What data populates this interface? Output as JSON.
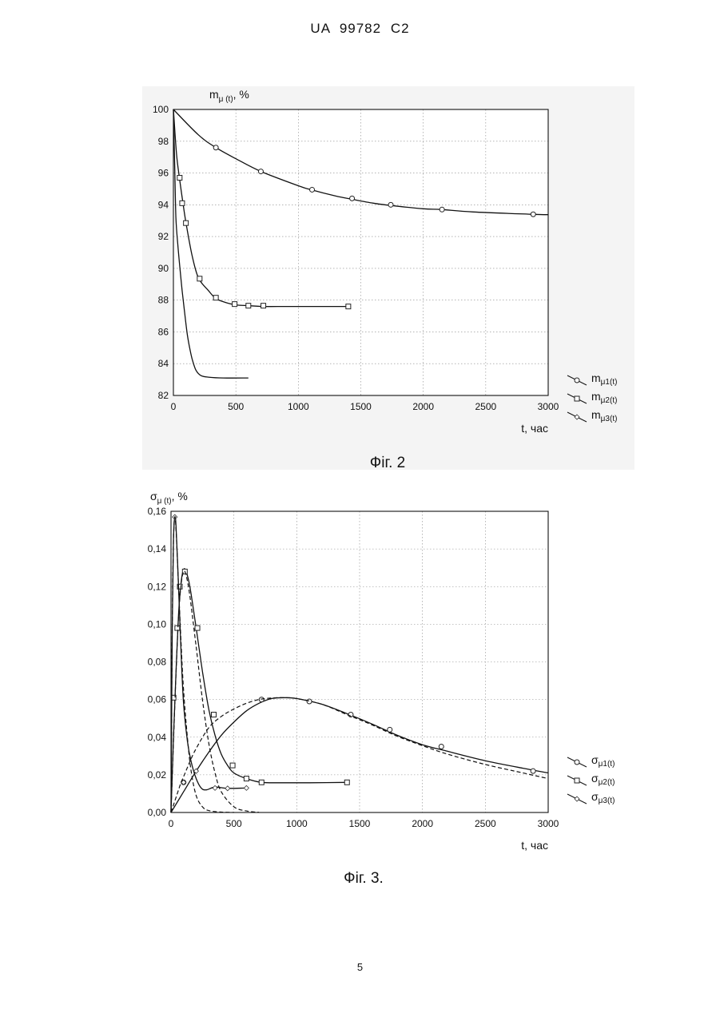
{
  "header": {
    "doc_number": "UA   99782   C2"
  },
  "page_number": "5",
  "figures": [
    {
      "caption": "Фіг. 2"
    },
    {
      "caption": "Фіг. 3."
    }
  ],
  "chart_data": [
    {
      "type": "line",
      "title": "",
      "ylabel": "m",
      "ylabel_sub": "μ (t)",
      "ylabel_unit": ", %",
      "xlabel": "t, час",
      "xlim": [
        0,
        3000
      ],
      "ylim": [
        82,
        100
      ],
      "xticks": [
        "0",
        "500",
        "1000",
        "1500",
        "2000",
        "2500",
        "3000"
      ],
      "yticks": [
        "82",
        "84",
        "86",
        "88",
        "90",
        "92",
        "94",
        "96",
        "98",
        "100"
      ],
      "grid": "dotted",
      "legend_position": "right-bottom",
      "series": [
        {
          "name": "m",
          "name_sub": "μ1(t)",
          "marker": "circle",
          "line": "solid",
          "x": [
            0,
            200,
            340,
            500,
            700,
            1000,
            1100,
            1300,
            1430,
            1600,
            1750,
            2000,
            2150,
            2400,
            2880,
            3000
          ],
          "y": [
            100,
            98.4,
            97.6,
            96.9,
            96.1,
            95.2,
            94.95,
            94.55,
            94.35,
            94.1,
            93.95,
            93.75,
            93.7,
            93.55,
            93.4,
            93.38
          ],
          "markers_x": [
            340,
            700,
            1110,
            1430,
            1740,
            2150,
            2880
          ],
          "markers_y": [
            97.6,
            96.1,
            94.95,
            94.4,
            94.0,
            93.7,
            93.4
          ]
        },
        {
          "name": "m",
          "name_sub": "μ2(t)",
          "marker": "square",
          "line": "solid",
          "x": [
            0,
            25,
            50,
            75,
            100,
            150,
            200,
            280,
            340,
            420,
            500,
            600,
            720,
            900,
            1100,
            1400
          ],
          "y": [
            100,
            97.2,
            95.6,
            94.2,
            92.9,
            90.8,
            89.4,
            88.6,
            88.1,
            87.85,
            87.7,
            87.65,
            87.6,
            87.6,
            87.6,
            87.6
          ],
          "markers_x": [
            50,
            70,
            100,
            210,
            340,
            490,
            600,
            720,
            1400
          ],
          "markers_y": [
            95.7,
            94.1,
            92.85,
            89.35,
            88.15,
            87.75,
            87.65,
            87.65,
            87.6
          ]
        },
        {
          "name": "m",
          "name_sub": "μ3(t)",
          "marker": "diamond",
          "line": "solid",
          "x": [
            0,
            10,
            20,
            35,
            50,
            70,
            90,
            110,
            130,
            150,
            180,
            220,
            280,
            400,
            600
          ],
          "y": [
            100,
            96.5,
            93.2,
            91.5,
            90.2,
            88.6,
            87.2,
            85.9,
            85.0,
            84.3,
            83.6,
            83.25,
            83.15,
            83.1,
            83.1
          ],
          "markers_x": [],
          "markers_y": []
        }
      ]
    },
    {
      "type": "line",
      "title": "",
      "ylabel": "σ",
      "ylabel_sub": "μ (t)",
      "ylabel_unit": ", %",
      "xlabel": "t, час",
      "xlim": [
        0,
        3000
      ],
      "ylim": [
        0,
        0.16
      ],
      "xticks": [
        "0",
        "500",
        "1000",
        "1500",
        "2000",
        "2500",
        "3000"
      ],
      "yticks": [
        "0,00",
        "0,02",
        "0,04",
        "0,06",
        "0,08",
        "0,10",
        "0,12",
        "0,14",
        "0,16"
      ],
      "grid": "dotted",
      "legend_position": "right-bottom",
      "series": [
        {
          "name": "σ",
          "name_sub": "μ1(t)",
          "marker": "circle",
          "line": "solid",
          "x": [
            0,
            100,
            200,
            300,
            400,
            500,
            600,
            700,
            800,
            900,
            1000,
            1200,
            1400,
            1600,
            1800,
            2000,
            2200,
            2500,
            2800,
            3000
          ],
          "y": [
            0,
            0.011,
            0.022,
            0.032,
            0.041,
            0.048,
            0.054,
            0.058,
            0.0605,
            0.061,
            0.0605,
            0.0575,
            0.0525,
            0.047,
            0.041,
            0.036,
            0.0325,
            0.0275,
            0.0235,
            0.021
          ],
          "markers_x": [
            100,
            720,
            1100,
            1430,
            1740,
            2150,
            2880
          ],
          "markers_y": [
            0.016,
            0.06,
            0.059,
            0.052,
            0.044,
            0.035,
            0.022
          ]
        },
        {
          "name": "σ",
          "name_sub": "μ2(t)",
          "marker": "square",
          "line": "solid",
          "x": [
            0,
            20,
            40,
            60,
            80,
            100,
            120,
            150,
            200,
            250,
            300,
            350,
            400,
            450,
            500,
            600,
            720,
            900,
            1100,
            1400
          ],
          "y": [
            0,
            0.04,
            0.075,
            0.105,
            0.122,
            0.129,
            0.128,
            0.12,
            0.098,
            0.075,
            0.055,
            0.041,
            0.031,
            0.025,
            0.021,
            0.018,
            0.016,
            0.0158,
            0.0158,
            0.016
          ],
          "markers_x": [
            20,
            50,
            70,
            110,
            210,
            340,
            490,
            600,
            720,
            1400
          ],
          "markers_y": [
            0.061,
            0.098,
            0.12,
            0.128,
            0.098,
            0.052,
            0.025,
            0.018,
            0.016,
            0.016
          ]
        },
        {
          "name": "σ",
          "name_sub": "μ3(t)",
          "marker": "diamond",
          "line": "solid",
          "x": [
            0,
            10,
            20,
            30,
            40,
            60,
            80,
            100,
            130,
            160,
            200,
            240,
            280,
            350,
            450,
            600
          ],
          "y": [
            0,
            0.1,
            0.145,
            0.157,
            0.152,
            0.12,
            0.085,
            0.058,
            0.038,
            0.027,
            0.018,
            0.013,
            0.012,
            0.0135,
            0.0128,
            0.013
          ],
          "markers_x": [
            30,
            100,
            200,
            350,
            450,
            600
          ],
          "markers_y": [
            0.157,
            0.016,
            0.022,
            0.013,
            0.0128,
            0.013
          ]
        },
        {
          "name": "",
          "marker": "none",
          "line": "dashed",
          "x": [
            0,
            20,
            40,
            60,
            80,
            100,
            150,
            200,
            300,
            400,
            500,
            600,
            700,
            800,
            900,
            1000,
            1200,
            1400,
            1600,
            1800,
            2000,
            2200,
            2500,
            2800,
            3000
          ],
          "y": [
            0,
            0.004,
            0.008,
            0.012,
            0.016,
            0.019,
            0.027,
            0.034,
            0.045,
            0.051,
            0.055,
            0.058,
            0.06,
            0.0608,
            0.061,
            0.0605,
            0.0575,
            0.052,
            0.0465,
            0.0405,
            0.0355,
            0.031,
            0.0255,
            0.021,
            0.018
          ]
        },
        {
          "name": "",
          "marker": "none",
          "line": "dashed",
          "x": [
            0,
            20,
            40,
            60,
            80,
            100,
            120,
            150,
            200,
            250,
            300,
            350,
            400,
            500,
            600,
            700
          ],
          "y": [
            0,
            0.038,
            0.074,
            0.104,
            0.121,
            0.128,
            0.126,
            0.115,
            0.088,
            0.06,
            0.037,
            0.021,
            0.011,
            0.003,
            0.0008,
            0.0001
          ]
        },
        {
          "name": "",
          "marker": "none",
          "line": "dashed",
          "x": [
            0,
            10,
            20,
            30,
            40,
            60,
            80,
            100,
            130,
            160,
            200,
            250,
            300,
            400,
            500
          ],
          "y": [
            0,
            0.1,
            0.145,
            0.157,
            0.15,
            0.12,
            0.09,
            0.065,
            0.04,
            0.022,
            0.009,
            0.003,
            0.001,
            0.0002,
            0
          ]
        }
      ]
    }
  ]
}
